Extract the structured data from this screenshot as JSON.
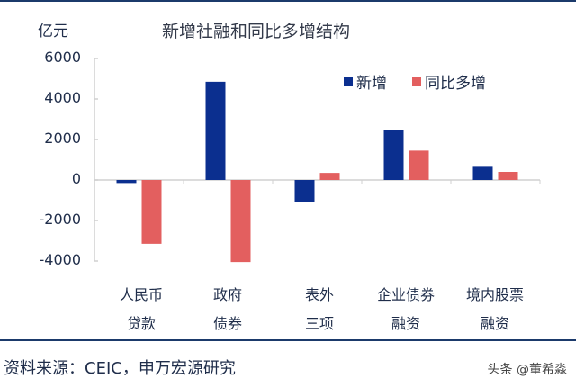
{
  "chart_data": {
    "type": "bar",
    "title": "新增社融和同比多增结构",
    "ylabel": "亿元",
    "xlabel": "",
    "ylim": [
      -4000,
      6000
    ],
    "yticks": [
      6000,
      4000,
      2000,
      0,
      -2000,
      -4000
    ],
    "categories": [
      "人民币贷款",
      "政府债券",
      "表外三项",
      "企业债券融资",
      "境内股票融资"
    ],
    "category_lines": [
      [
        "人民币",
        "贷款"
      ],
      [
        "政府",
        "债券"
      ],
      [
        "表外",
        "三项"
      ],
      [
        "企业债券",
        "融资"
      ],
      [
        "境内股票",
        "融资"
      ]
    ],
    "series": [
      {
        "name": "新增",
        "color": "#0b2f8f",
        "values": [
          -150,
          4850,
          -1100,
          2450,
          650
        ]
      },
      {
        "name": "同比多增",
        "color": "#e35f5f",
        "values": [
          -3150,
          -4050,
          350,
          1450,
          400
        ]
      }
    ],
    "legend_position": "top-right",
    "grid": false
  },
  "ui": {
    "unit": "亿元",
    "title": "新增社融和同比多增结构",
    "legend": [
      "新增",
      "同比多增"
    ],
    "yticks": [
      "6000",
      "4000",
      "2000",
      "0",
      "-2000",
      "-4000"
    ],
    "categories": [
      [
        "人民币",
        "贷款"
      ],
      [
        "政府",
        "债券"
      ],
      [
        "表外",
        "三项"
      ],
      [
        "企业债券",
        "融资"
      ],
      [
        "境内股票",
        "融资"
      ]
    ],
    "source": "资料来源：CEIC，申万宏源研究",
    "watermark": "头条 @董希淼"
  }
}
